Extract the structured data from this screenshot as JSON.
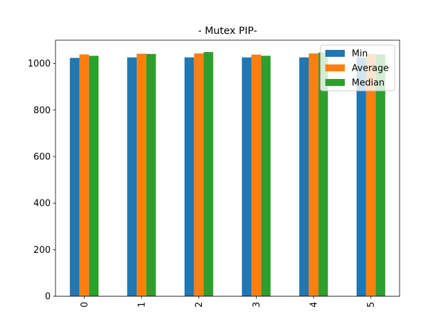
{
  "chart_data": {
    "type": "bar",
    "title": "- Mutex PIP-",
    "xlabel": "",
    "ylabel": "",
    "categories": [
      "0",
      "1",
      "2",
      "3",
      "4",
      "5"
    ],
    "series": [
      {
        "name": "Min",
        "color": "#1f77b4",
        "values": [
          1024,
          1026,
          1026,
          1026,
          1026,
          1026
        ]
      },
      {
        "name": "Average",
        "color": "#ff7f0e",
        "values": [
          1039,
          1042,
          1043,
          1038,
          1043,
          1041
        ]
      },
      {
        "name": "Median",
        "color": "#2ca02c",
        "values": [
          1033,
          1041,
          1049,
          1033,
          1047,
          1039
        ]
      }
    ],
    "ylim": [
      0,
      1100
    ],
    "yticks": [
      0,
      200,
      400,
      600,
      800,
      1000
    ],
    "x_tick_rotation": "vertical",
    "legend_position": "upper right",
    "grid": false
  }
}
